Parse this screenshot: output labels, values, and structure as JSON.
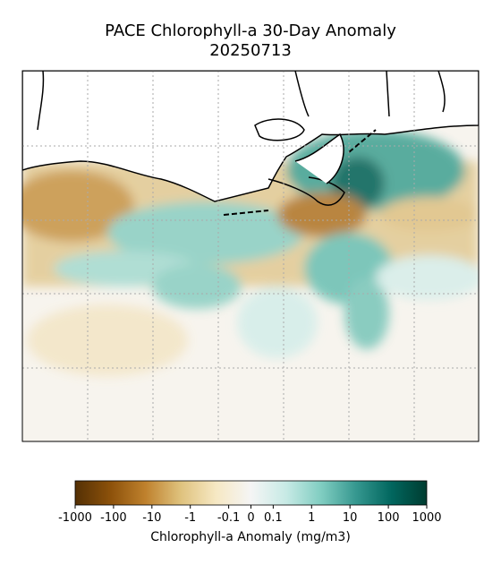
{
  "chart_data": {
    "type": "map",
    "title": "PACE Chlorophyll-a 30-Day Anomaly",
    "subtitle": "20250713",
    "colorbar": {
      "label": "Chlorophyll-a Anomaly (mg/m3)",
      "scale": "symlog",
      "ticks": [
        -1000,
        -100,
        -10,
        -1,
        -0.1,
        0,
        0.1,
        1,
        10,
        100,
        1000
      ],
      "colors": [
        "#543005",
        "#8c510a",
        "#bf812d",
        "#dfc27d",
        "#f6e8c3",
        "#f5f5f5",
        "#c7eae5",
        "#80cdc1",
        "#35978f",
        "#01665e",
        "#003c30"
      ]
    }
  }
}
